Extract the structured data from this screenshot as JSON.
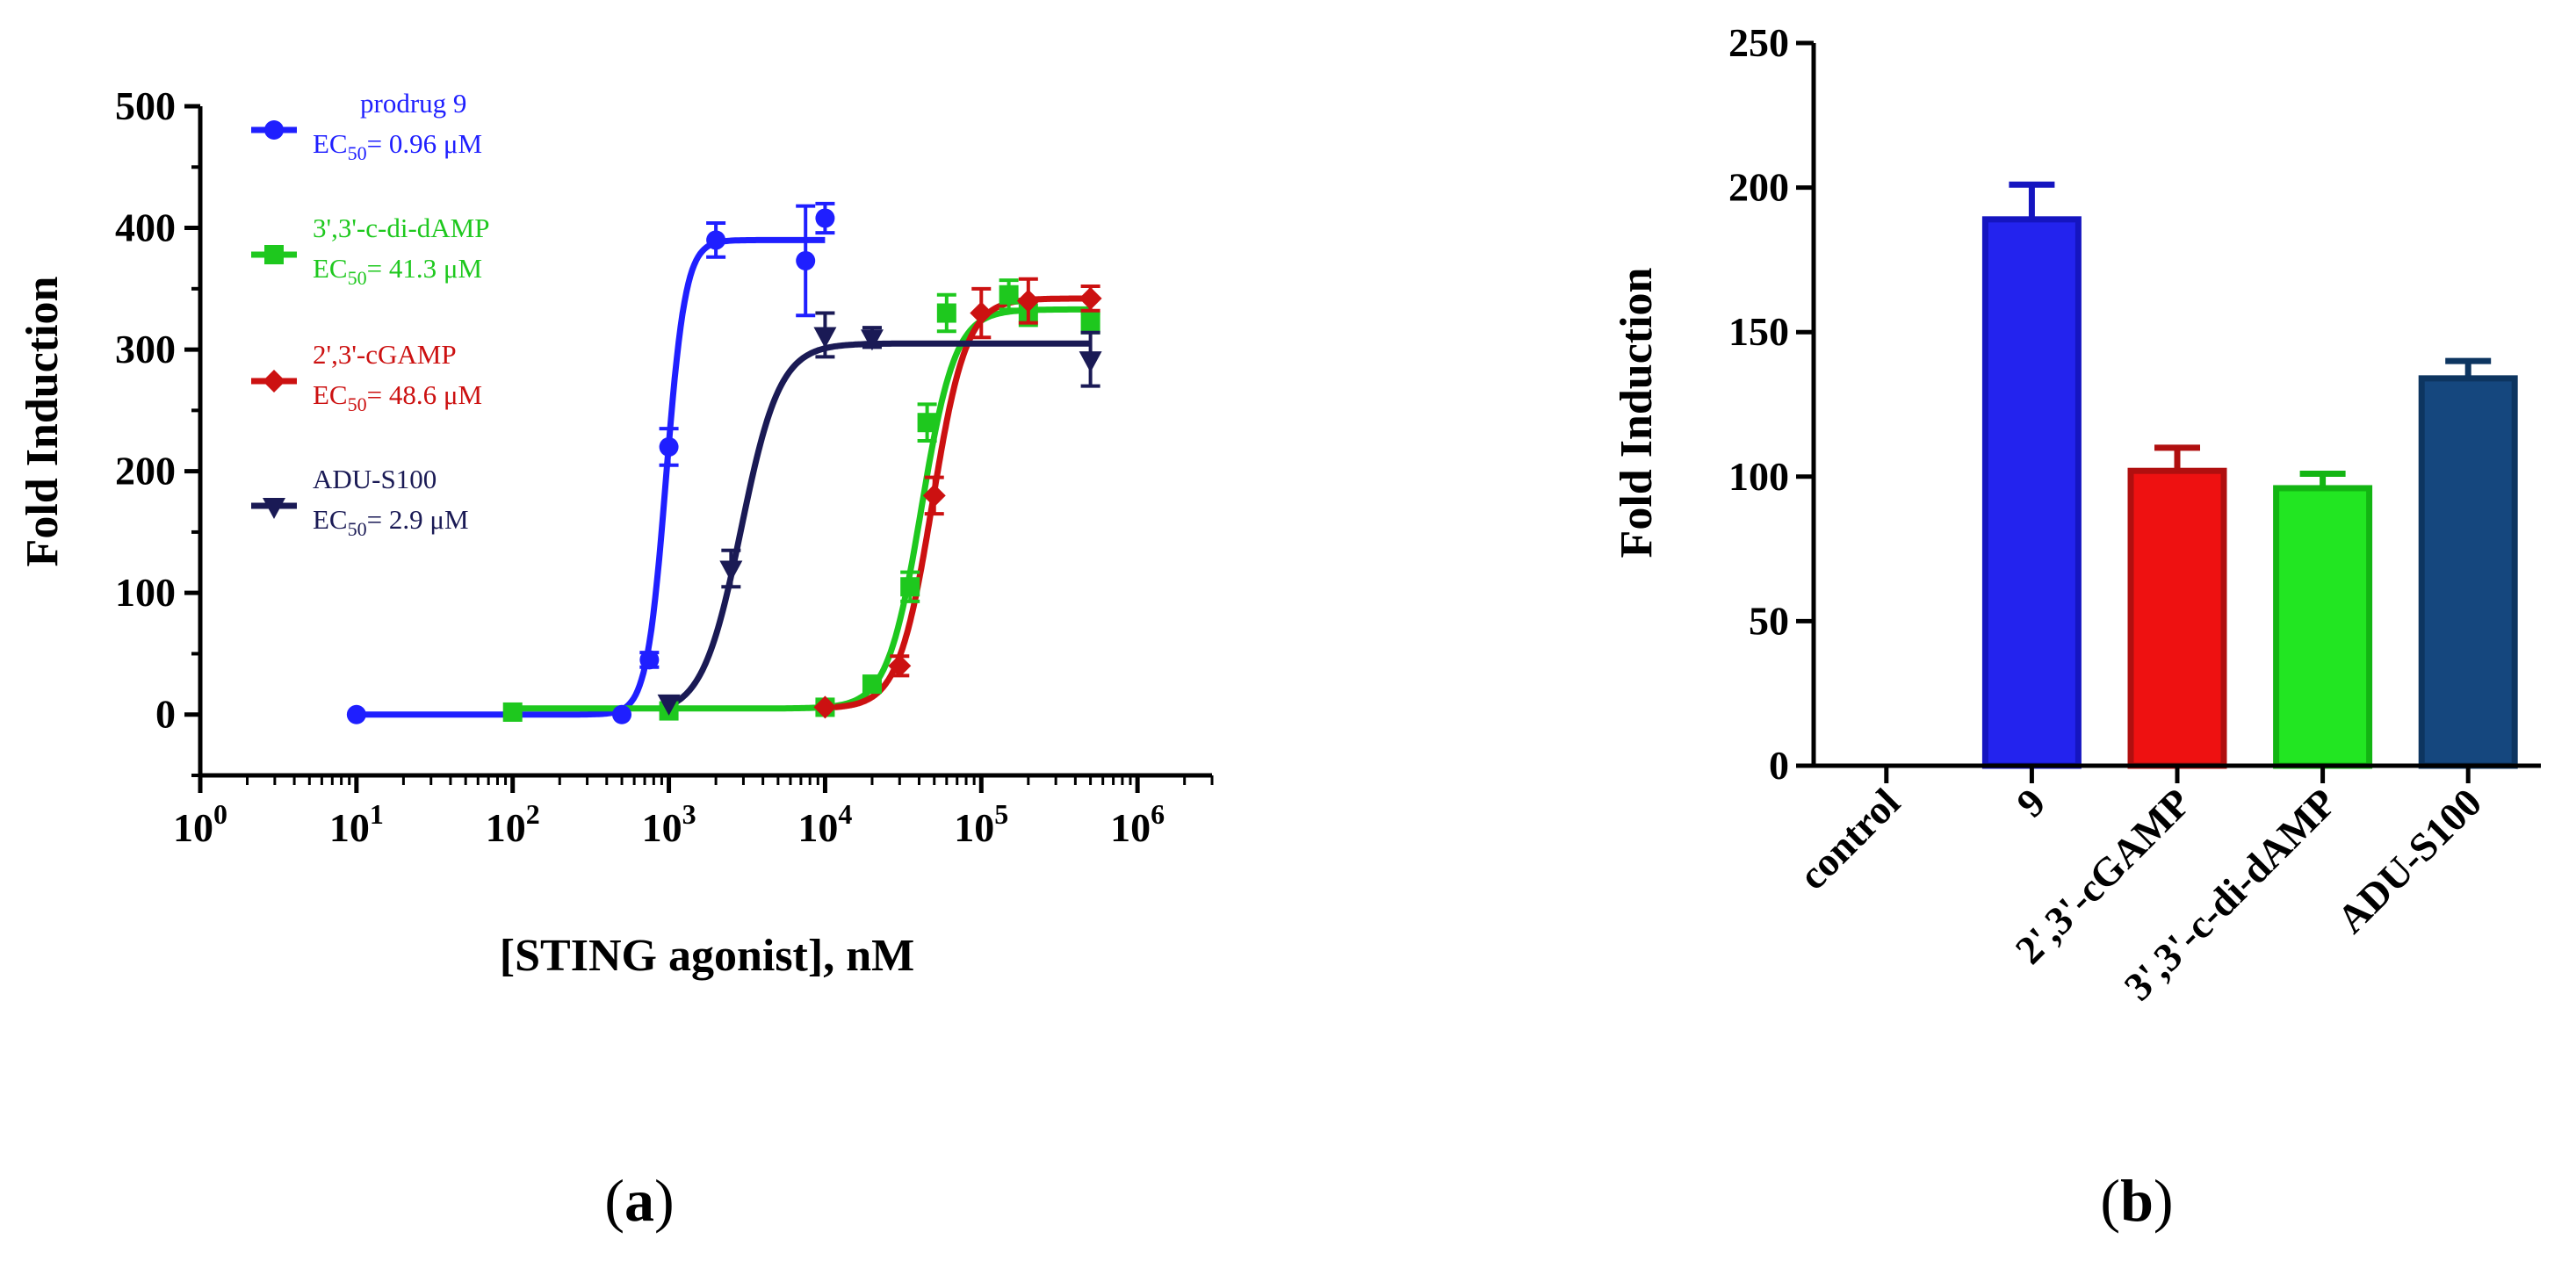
{
  "chart_data": [
    {
      "panel_label": "a",
      "type": "line",
      "xlabel": "[STING agonist], nM",
      "ylabel": "Fold Induction",
      "x_scale": "log10",
      "xlim": [
        1,
        3000000
      ],
      "ylim": [
        -50,
        500
      ],
      "yticks": [
        0,
        100,
        200,
        300,
        400,
        500
      ],
      "x_tick_exponents": [
        "0",
        "1",
        "2",
        "3",
        "4",
        "5",
        "6"
      ],
      "x_tick_base": "10",
      "legend_position": "top-left",
      "series": [
        {
          "name": "prodrug 9",
          "ec50_prefix": "EC",
          "ec50_sub": "50",
          "ec50_value": "= 0.96 μM",
          "color": "#1f1fff",
          "marker": "circle",
          "fit": {
            "bottom": 0,
            "top": 390,
            "ec50_nM": 960,
            "hill": 7
          },
          "points": [
            {
              "x": 10,
              "y": 0,
              "err": 0
            },
            {
              "x": 500,
              "y": 0,
              "err": 0
            },
            {
              "x": 750,
              "y": 45,
              "err": 6
            },
            {
              "x": 1000,
              "y": 220,
              "err": 15
            },
            {
              "x": 2000,
              "y": 390,
              "err": 14
            },
            {
              "x": 7500,
              "y": 373,
              "err": 45
            },
            {
              "x": 10000,
              "y": 408,
              "err": 12
            }
          ]
        },
        {
          "name": "3',3'-c-di-dAMP",
          "ec50_prefix": "EC",
          "ec50_sub": "50",
          "ec50_value": "= 41.3 μM",
          "color": "#1ec81e",
          "marker": "square",
          "fit": {
            "bottom": 5,
            "top": 333,
            "ec50_nM": 41300,
            "hill": 4
          },
          "points": [
            {
              "x": 100,
              "y": 2,
              "err": 0
            },
            {
              "x": 1000,
              "y": 3,
              "err": 0
            },
            {
              "x": 10000,
              "y": 6,
              "err": 0
            },
            {
              "x": 20000,
              "y": 25,
              "err": 5
            },
            {
              "x": 35000,
              "y": 105,
              "err": 12
            },
            {
              "x": 45000,
              "y": 240,
              "err": 15
            },
            {
              "x": 60000,
              "y": 330,
              "err": 15
            },
            {
              "x": 150000,
              "y": 345,
              "err": 12
            },
            {
              "x": 200000,
              "y": 330,
              "err": 10
            },
            {
              "x": 500000,
              "y": 322,
              "err": 8
            }
          ]
        },
        {
          "name": "2',3'-cGAMP",
          "ec50_prefix": "EC",
          "ec50_sub": "50",
          "ec50_value": "= 48.6 μM",
          "color": "#cc1111",
          "marker": "diamond",
          "fit": {
            "bottom": 5,
            "top": 342,
            "ec50_nM": 48600,
            "hill": 4
          },
          "points": [
            {
              "x": 10000,
              "y": 6,
              "err": 0
            },
            {
              "x": 30000,
              "y": 40,
              "err": 8
            },
            {
              "x": 50000,
              "y": 180,
              "err": 15
            },
            {
              "x": 100000,
              "y": 330,
              "err": 20
            },
            {
              "x": 200000,
              "y": 340,
              "err": 18
            },
            {
              "x": 500000,
              "y": 342,
              "err": 10
            }
          ]
        },
        {
          "name": "ADU-S100",
          "ec50_prefix": "EC",
          "ec50_sub": "50",
          "ec50_value": "= 2.9 μM",
          "color": "#1a1a55",
          "marker": "triangle-down",
          "fit": {
            "bottom": 0,
            "top": 305,
            "ec50_nM": 2900,
            "hill": 3.5
          },
          "points": [
            {
              "x": 1000,
              "y": 10,
              "err": 0
            },
            {
              "x": 2500,
              "y": 120,
              "err": 15
            },
            {
              "x": 10000,
              "y": 312,
              "err": 18
            },
            {
              "x": 20000,
              "y": 310,
              "err": 8
            },
            {
              "x": 500000,
              "y": 292,
              "err": 22
            }
          ]
        }
      ]
    },
    {
      "panel_label": "b",
      "type": "bar",
      "xlabel": "",
      "ylabel": "Fold Induction",
      "ylim": [
        0,
        250
      ],
      "yticks": [
        0,
        50,
        100,
        150,
        200,
        250
      ],
      "categories": [
        "control",
        "9",
        "2',3'-cGAMP",
        "3',3'-c-di-dAMP",
        "ADU-S100"
      ],
      "values": [
        0,
        189,
        102,
        96,
        134
      ],
      "errors": [
        0,
        12,
        8,
        5,
        6
      ],
      "fill_colors": [
        "#ffffff",
        "#2323ee",
        "#ee1111",
        "#22e622",
        "#15477e"
      ],
      "edge_colors": [
        "#000000",
        "#1515c0",
        "#b00f0f",
        "#13b513",
        "#0d3560"
      ]
    }
  ]
}
